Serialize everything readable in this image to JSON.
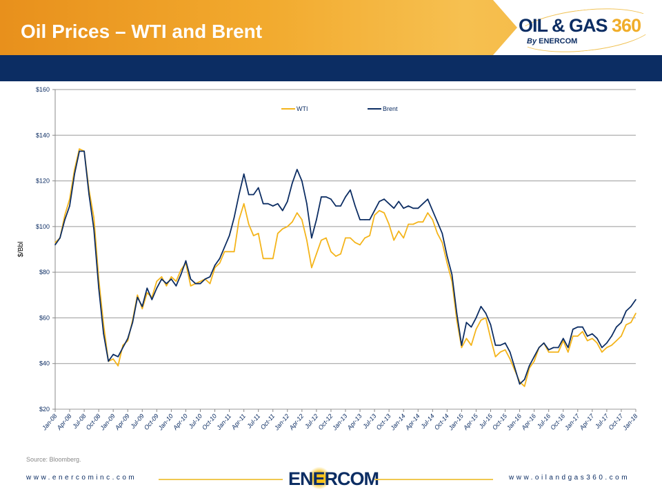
{
  "header": {
    "title": "Oil Prices – WTI and Brent",
    "logo_text": "OIL & GAS 360",
    "logo_sub": "By ENERCOM"
  },
  "footer": {
    "source": "Source: Bloomberg.",
    "left_url": "www.enercominc.com",
    "right_url": "www.oilandgas360.com",
    "logo": "ENERCOM"
  },
  "chart_data": {
    "type": "line",
    "title": "",
    "ylabel": "$/Bbl",
    "xlabel": "",
    "ylim": [
      20,
      160
    ],
    "yticks": [
      20,
      40,
      60,
      80,
      100,
      120,
      140,
      160
    ],
    "ytick_labels": [
      "$20",
      "$40",
      "$60",
      "$80",
      "$100",
      "$120",
      "$140",
      "$160"
    ],
    "xtick_labels": [
      "Jan-08",
      "Apr-08",
      "Jul-08",
      "Oct-08",
      "Jan-09",
      "Apr-09",
      "Jul-09",
      "Oct-09",
      "Jan-10",
      "Apr-10",
      "Jul-10",
      "Oct-10",
      "Jan-11",
      "Apr-11",
      "Jul-11",
      "Oct-11",
      "Jan-12",
      "Apr-12",
      "Jul-12",
      "Oct-12",
      "Jan-13",
      "Apr-13",
      "Jul-13",
      "Oct-13",
      "Jan-14",
      "Apr-14",
      "Jul-14",
      "Oct-14",
      "Jan-15",
      "Apr-15",
      "Jul-15",
      "Oct-15",
      "Jan-16",
      "Apr-16",
      "Jul-16",
      "Oct-16",
      "Jan-17",
      "Apr-17",
      "Jul-17",
      "Oct-17",
      "Jan-18"
    ],
    "grid": true,
    "legend": "top-center",
    "x_unit": "months since Jan-08",
    "series": [
      {
        "name": "WTI",
        "color": "#f4b41a",
        "values": [
          93,
          95,
          105,
          112,
          125,
          134,
          133,
          116,
          104,
          77,
          57,
          41,
          42,
          39,
          48,
          50,
          59,
          70,
          64,
          71,
          69,
          76,
          78,
          74,
          78,
          76,
          81,
          84,
          74,
          75,
          76,
          77,
          75,
          82,
          84,
          89,
          89,
          89,
          103,
          110,
          101,
          96,
          97,
          86,
          86,
          86,
          97,
          99,
          100,
          102,
          106,
          103,
          94,
          82,
          88,
          94,
          95,
          89,
          87,
          88,
          95,
          95,
          93,
          92,
          95,
          96,
          105,
          107,
          106,
          101,
          94,
          98,
          95,
          101,
          101,
          102,
          102,
          106,
          103,
          97,
          93,
          84,
          76,
          59,
          47,
          51,
          48,
          55,
          59,
          60,
          51,
          43,
          45,
          46,
          42,
          37,
          32,
          30,
          38,
          41,
          47,
          49,
          45,
          45,
          45,
          50,
          45,
          52,
          52,
          54,
          50,
          51,
          49,
          45,
          47,
          48,
          50,
          52,
          57,
          58,
          62
        ]
      },
      {
        "name": "Brent",
        "color": "#0c2d63",
        "values": [
          92,
          95,
          103,
          109,
          123,
          133,
          133,
          114,
          99,
          73,
          53,
          41,
          44,
          43,
          47,
          51,
          58,
          69,
          65,
          73,
          68,
          73,
          77,
          75,
          77,
          74,
          79,
          85,
          77,
          75,
          75,
          77,
          78,
          83,
          86,
          91,
          96,
          104,
          114,
          123,
          114,
          114,
          117,
          110,
          110,
          109,
          110,
          107,
          111,
          119,
          125,
          120,
          110,
          95,
          103,
          113,
          113,
          112,
          109,
          109,
          113,
          116,
          109,
          103,
          103,
          103,
          107,
          111,
          112,
          110,
          108,
          111,
          108,
          109,
          108,
          108,
          110,
          112,
          107,
          102,
          97,
          87,
          79,
          62,
          48,
          58,
          56,
          60,
          65,
          62,
          57,
          48,
          48,
          49,
          45,
          38,
          31,
          33,
          39,
          43,
          47,
          49,
          46,
          47,
          47,
          51,
          47,
          55,
          56,
          56,
          52,
          53,
          51,
          47,
          49,
          52,
          56,
          58,
          63,
          65,
          68
        ]
      }
    ]
  }
}
